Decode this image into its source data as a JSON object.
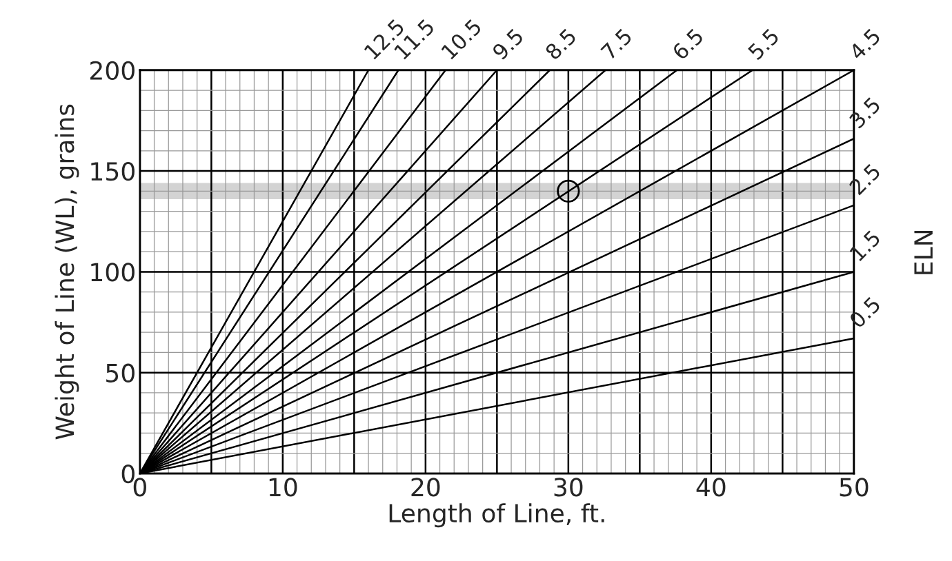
{
  "chart_data": {
    "type": "line",
    "xlabel": "Length of Line, ft.",
    "ylabel": "Weight of Line (WL), grains",
    "xlim": [
      0,
      50
    ],
    "ylim": [
      0,
      200
    ],
    "xticks": [
      0,
      {
        "value": 5,
        "label": null
      },
      10,
      {
        "value": 15,
        "label": null
      },
      20,
      {
        "value": 25,
        "label": null
      },
      30,
      {
        "value": 35,
        "label": null
      },
      40,
      {
        "value": 45,
        "label": null
      },
      50
    ],
    "yticks": [
      0,
      50,
      100,
      150,
      200
    ],
    "grid": true,
    "legend": false,
    "line_style": "solid",
    "marker": "none",
    "series": [
      {
        "name": "0.5",
        "color": "#000000",
        "x": [
          0,
          50
        ],
        "values": [
          0,
          67
        ]
      },
      {
        "name": "1.5",
        "color": "#000000",
        "x": [
          0,
          50
        ],
        "values": [
          0,
          100
        ]
      },
      {
        "name": "2.5",
        "color": "#000000",
        "x": [
          0,
          50
        ],
        "values": [
          0,
          133
        ]
      },
      {
        "name": "3.5",
        "color": "#000000",
        "x": [
          0,
          50
        ],
        "values": [
          0,
          166
        ]
      },
      {
        "name": "4.5",
        "color": "#000000",
        "x": [
          0,
          50
        ],
        "values": [
          0,
          200
        ]
      },
      {
        "name": "5.5",
        "color": "#000000",
        "x": [
          0,
          42.9
        ],
        "values": [
          0,
          200
        ]
      },
      {
        "name": "6.5",
        "color": "#000000",
        "x": [
          0,
          37.6
        ],
        "values": [
          0,
          200
        ]
      },
      {
        "name": "7.5",
        "color": "#000000",
        "x": [
          0,
          32.6
        ],
        "values": [
          0,
          200
        ]
      },
      {
        "name": "8.5",
        "color": "#000000",
        "x": [
          0,
          28.7
        ],
        "values": [
          0,
          200
        ]
      },
      {
        "name": "9.5",
        "color": "#000000",
        "x": [
          0,
          25.0
        ],
        "values": [
          0,
          200
        ]
      },
      {
        "name": "10.5",
        "color": "#000000",
        "x": [
          0,
          21.4
        ],
        "values": [
          0,
          200
        ]
      },
      {
        "name": "11.5",
        "color": "#000000",
        "x": [
          0,
          18.1
        ],
        "values": [
          0,
          200
        ]
      },
      {
        "name": "12.5",
        "color": "#000000",
        "x": [
          0,
          16.0
        ],
        "values": [
          0,
          200
        ]
      },
      {
        "type": "scatter",
        "marker": "circle",
        "color": "#000000",
        "x": [
          30
        ],
        "values": [
          140
        ]
      }
    ],
    "bands": [
      {
        "axis": "y",
        "from": 136,
        "to": 144,
        "color": "#c8c8c8"
      }
    ],
    "annotations": [
      "ELN"
    ]
  }
}
